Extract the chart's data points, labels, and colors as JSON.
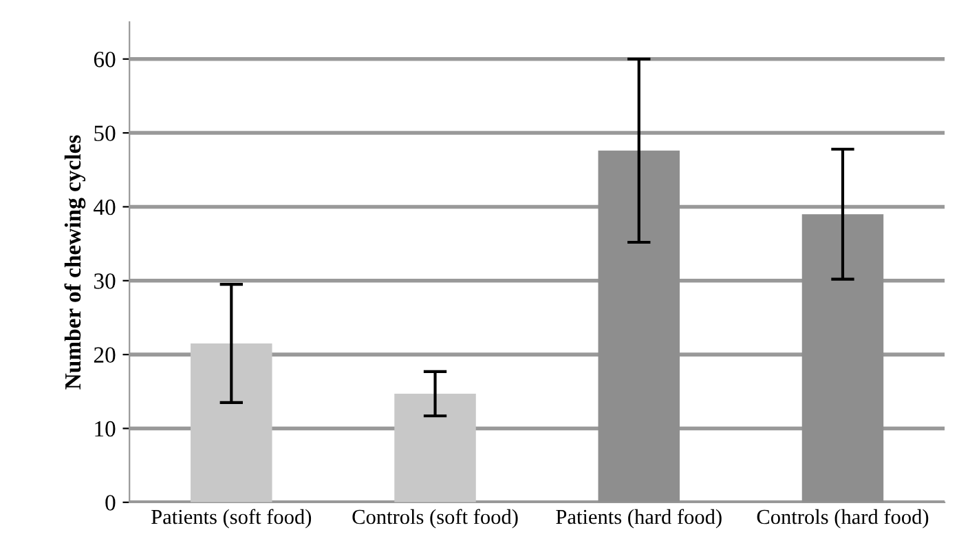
{
  "chart_data": {
    "type": "bar",
    "ylabel": "Number of chewing cycles",
    "categories": [
      "Patients (soft food)",
      "Controls (soft food)",
      "Patients (hard food)",
      "Controls (hard food)"
    ],
    "values": [
      21.5,
      14.7,
      47.6,
      39.0
    ],
    "errors": [
      8,
      3,
      12.4,
      8.8
    ],
    "colors": [
      "#c8c8c8",
      "#c8c8c8",
      "#8e8e8e",
      "#8e8e8e"
    ],
    "ylim": [
      0,
      65
    ],
    "yticks": [
      0,
      10,
      20,
      30,
      40,
      50,
      60
    ],
    "grid": "y"
  }
}
